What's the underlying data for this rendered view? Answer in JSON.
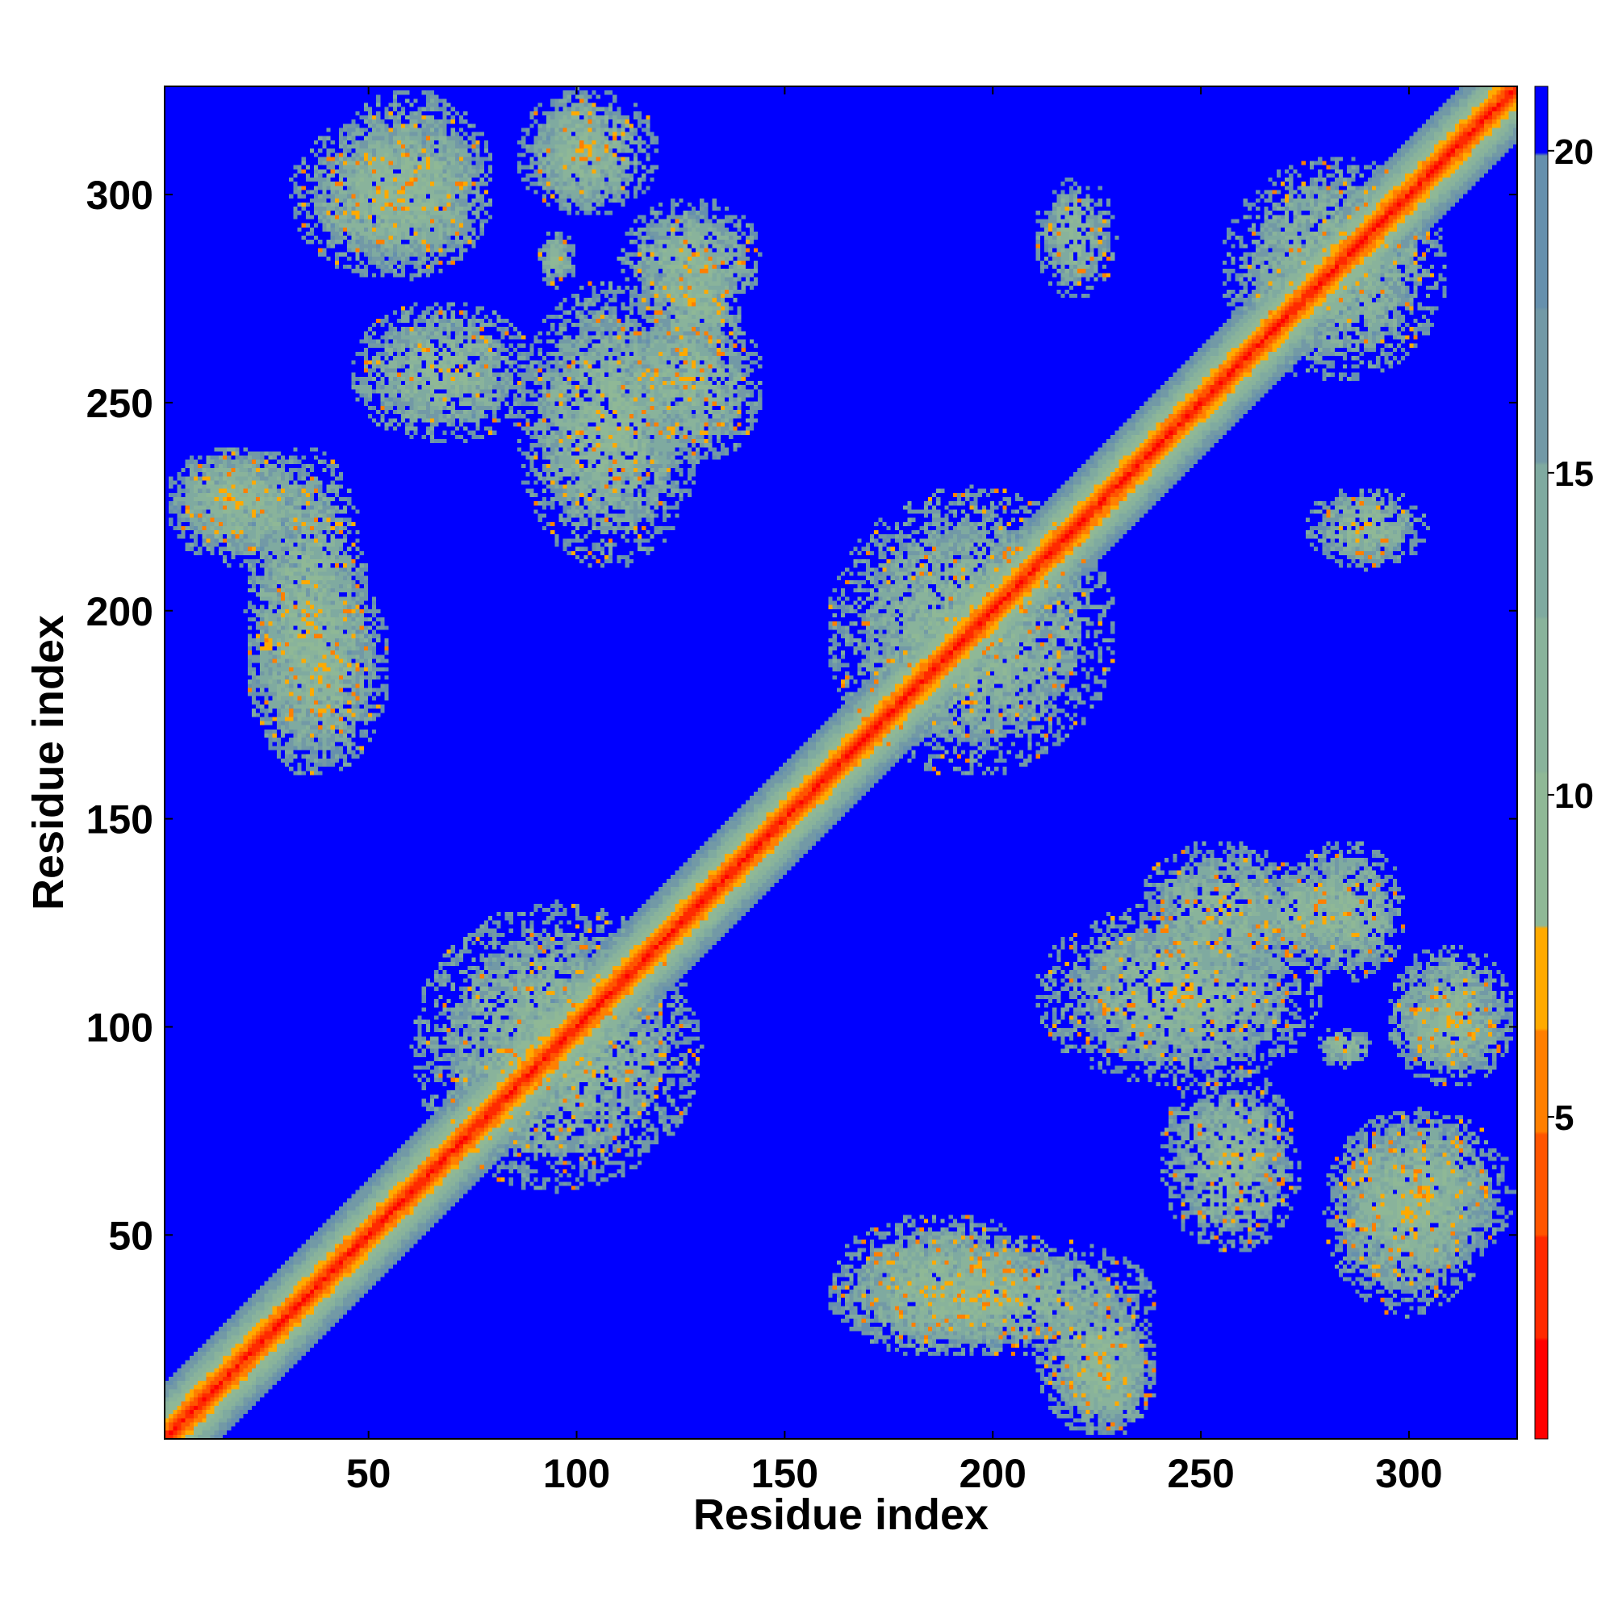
{
  "chart_data": {
    "type": "heatmap",
    "title": "",
    "xlabel": "Residue index",
    "ylabel": "Residue index",
    "xlim": [
      1,
      326
    ],
    "ylim": [
      1,
      326
    ],
    "x_ticks": [
      50,
      100,
      150,
      200,
      250,
      300
    ],
    "y_ticks": [
      50,
      100,
      150,
      200,
      250,
      300
    ],
    "tick_labels": [
      "50",
      "100",
      "150",
      "200",
      "250",
      "300"
    ],
    "colorbar": {
      "range": [
        0,
        21
      ],
      "ticks": [
        5,
        10,
        15,
        20
      ],
      "tick_labels": [
        "5",
        "10",
        "15",
        "20"
      ],
      "colors": [
        "#ff0000",
        "#ff2a00",
        "#ff5500",
        "#ff7f00",
        "#ffaa00",
        "#8fb896",
        "#89b39b",
        "#7faaa0",
        "#7299a6",
        "#6690ad",
        "#0000ff"
      ]
    },
    "n_residues": 326,
    "matrix_description": "symmetric pairwise residue distance map; strong diagonal band of low values",
    "contact_blocks": [
      {
        "x": [
          40,
          80
        ],
        "y": [
          280,
          326
        ]
      },
      {
        "x": [
          85,
          120
        ],
        "y": [
          295,
          326
        ]
      },
      {
        "x": [
          45,
          90
        ],
        "y": [
          240,
          275
        ]
      },
      {
        "x": [
          110,
          145
        ],
        "y": [
          235,
          275
        ]
      },
      {
        "x": [
          110,
          145
        ],
        "y": [
          270,
          300
        ]
      },
      {
        "x": [
          90,
          100
        ],
        "y": [
          278,
          292
        ]
      },
      {
        "x": [
          1,
          40
        ],
        "y": [
          210,
          240
        ]
      },
      {
        "x": [
          20,
          55
        ],
        "y": [
          160,
          215
        ]
      },
      {
        "x": [
          60,
          130
        ],
        "y": [
          60,
          130
        ]
      },
      {
        "x": [
          160,
          230
        ],
        "y": [
          160,
          230
        ]
      },
      {
        "x": [
          255,
          310
        ],
        "y": [
          255,
          310
        ]
      },
      {
        "x": [
          160,
          240
        ],
        "y": [
          20,
          50
        ]
      },
      {
        "x": [
          215,
          240
        ],
        "y": [
          1,
          30
        ]
      },
      {
        "x": [
          210,
          280
        ],
        "y": [
          85,
          130
        ]
      },
      {
        "x": [
          280,
          320
        ],
        "y": [
          30,
          80
        ]
      },
      {
        "x": [
          260,
          290
        ],
        "y": [
          115,
          140
        ]
      },
      {
        "x": [
          275,
          305
        ],
        "y": [
          210,
          230
        ]
      },
      {
        "x": [
          295,
          326
        ],
        "y": [
          90,
          110
        ]
      }
    ]
  }
}
